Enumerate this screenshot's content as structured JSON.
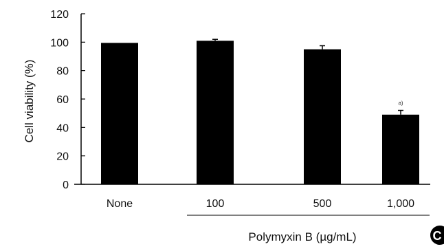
{
  "chart_data": {
    "type": "bar",
    "ylabel": "Cell viability (%)",
    "xlabel": "Polymyxin B (µg/mL)",
    "categories": [
      "None",
      "100",
      "500",
      "1,000"
    ],
    "values": [
      99.5,
      101,
      95,
      49
    ],
    "errors": [
      0,
      1,
      2.5,
      3
    ],
    "annotations": [
      {
        "category": "1,000",
        "text": "a)"
      }
    ],
    "ylim": [
      0,
      120
    ],
    "yticks": [
      0,
      20,
      40,
      60,
      80,
      100,
      120
    ],
    "grid": false,
    "bar_color": "#000000",
    "panel_label": "C"
  }
}
